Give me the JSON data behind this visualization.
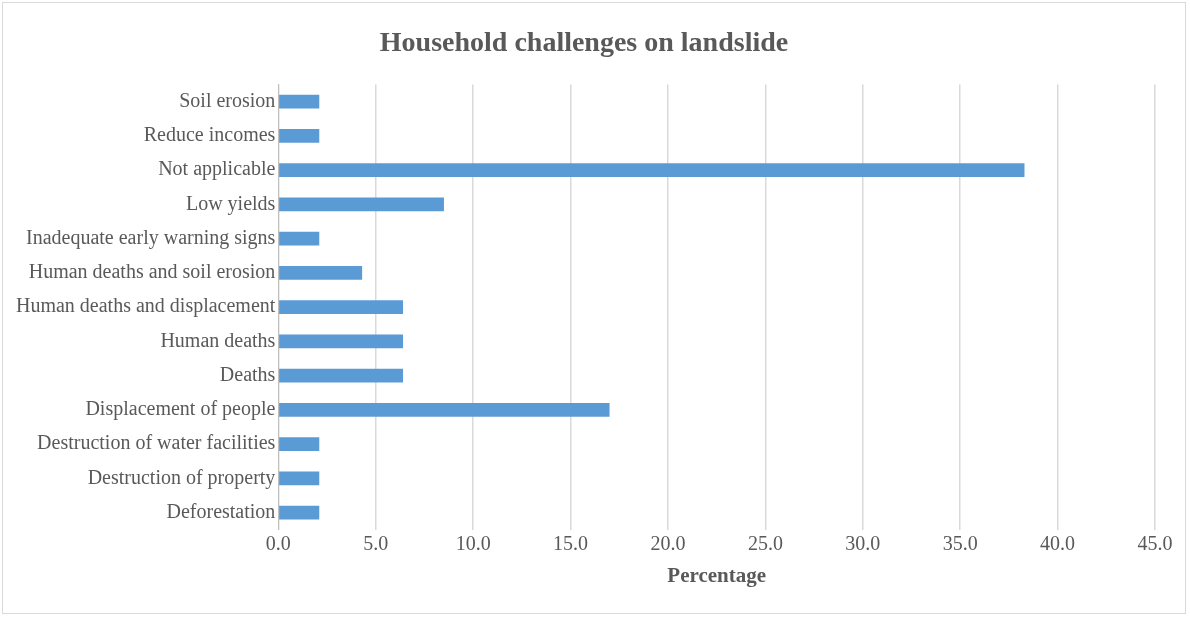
{
  "chart_data": {
    "type": "bar",
    "orientation": "horizontal",
    "title": "Household challenges on landslide",
    "xlabel": "Percentage",
    "categories": [
      "Soil erosion",
      "Reduce incomes",
      "Not applicable",
      "Low yields",
      "Inadequate early warning signs",
      "Human deaths and soil erosion",
      "Human deaths and displacement",
      "Human deaths",
      "Deaths",
      "Displacement of people",
      "Destruction of water facilities",
      "Destruction of property",
      "Deforestation"
    ],
    "values": [
      2.1,
      2.1,
      38.3,
      8.5,
      2.1,
      4.3,
      6.4,
      6.4,
      6.4,
      17.0,
      2.1,
      2.1,
      2.1
    ],
    "color": "#5b9bd5",
    "xlim": [
      0,
      45
    ],
    "xticks": [
      {
        "value": 0,
        "label": "0.0"
      },
      {
        "value": 5,
        "label": "5.0"
      },
      {
        "value": 10,
        "label": "10.0"
      },
      {
        "value": 15,
        "label": "15.0"
      },
      {
        "value": 20,
        "label": "20.0"
      },
      {
        "value": 25,
        "label": "25.0"
      },
      {
        "value": 30,
        "label": "30.0"
      },
      {
        "value": 35,
        "label": "35.0"
      },
      {
        "value": 40,
        "label": "40.0"
      },
      {
        "value": 45,
        "label": "45.0"
      }
    ],
    "grid": "x",
    "legend": false
  }
}
